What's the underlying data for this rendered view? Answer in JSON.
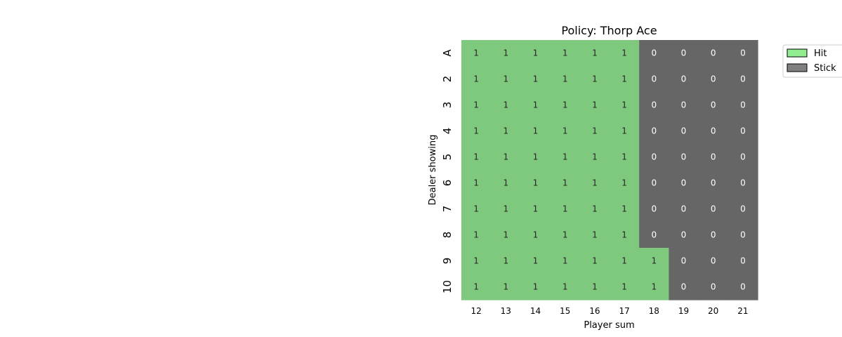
{
  "chart_data": {
    "type": "heatmap",
    "title": "Policy: Thorp Ace",
    "xlabel": "Player sum",
    "ylabel": "Dealer showing",
    "x_categories": [
      "12",
      "13",
      "14",
      "15",
      "16",
      "17",
      "18",
      "19",
      "20",
      "21"
    ],
    "y_categories": [
      "A",
      "2",
      "3",
      "4",
      "5",
      "6",
      "7",
      "8",
      "9",
      "10"
    ],
    "values": [
      [
        1,
        1,
        1,
        1,
        1,
        1,
        0,
        0,
        0,
        0
      ],
      [
        1,
        1,
        1,
        1,
        1,
        1,
        0,
        0,
        0,
        0
      ],
      [
        1,
        1,
        1,
        1,
        1,
        1,
        0,
        0,
        0,
        0
      ],
      [
        1,
        1,
        1,
        1,
        1,
        1,
        0,
        0,
        0,
        0
      ],
      [
        1,
        1,
        1,
        1,
        1,
        1,
        0,
        0,
        0,
        0
      ],
      [
        1,
        1,
        1,
        1,
        1,
        1,
        0,
        0,
        0,
        0
      ],
      [
        1,
        1,
        1,
        1,
        1,
        1,
        0,
        0,
        0,
        0
      ],
      [
        1,
        1,
        1,
        1,
        1,
        1,
        0,
        0,
        0,
        0
      ],
      [
        1,
        1,
        1,
        1,
        1,
        1,
        1,
        0,
        0,
        0
      ],
      [
        1,
        1,
        1,
        1,
        1,
        1,
        1,
        0,
        0,
        0
      ]
    ],
    "value_colors": {
      "1": "#7fc97f",
      "0": "#666666"
    },
    "cell_text_colors": {
      "1": "#262626",
      "0": "#ffffff"
    },
    "legend": {
      "placement": "upper-right-outside",
      "entries": [
        {
          "label": "Hit",
          "color": "#90ee90"
        },
        {
          "label": "Stick",
          "color": "#808080"
        }
      ]
    }
  }
}
